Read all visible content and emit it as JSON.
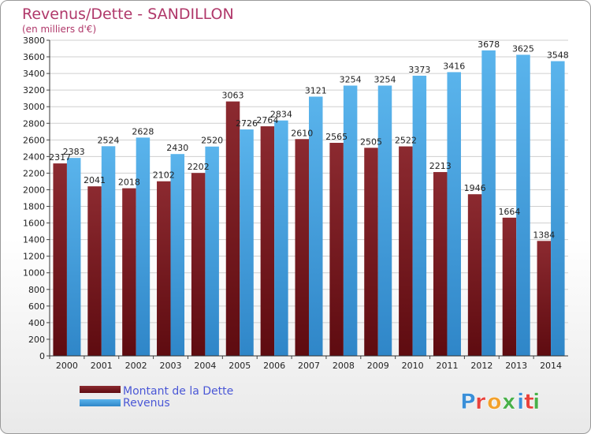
{
  "chart_data": {
    "type": "bar",
    "title": "Revenus/Dette - SANDILLON",
    "subtitle": "(en milliers d'€)",
    "categories": [
      "2000",
      "2001",
      "2002",
      "2003",
      "2004",
      "2005",
      "2006",
      "2007",
      "2008",
      "2009",
      "2010",
      "2011",
      "2012",
      "2013",
      "2014"
    ],
    "series": [
      {
        "name": "Montant de la Dette",
        "color": "#7a1d22",
        "values": [
          2317,
          2041,
          2018,
          2102,
          2202,
          3063,
          2764,
          2610,
          2565,
          2505,
          2522,
          2213,
          1946,
          1664,
          1384
        ]
      },
      {
        "name": "Revenus",
        "color": "#4aa8e6",
        "values": [
          2383,
          2524,
          2628,
          2430,
          2520,
          2726,
          2834,
          3121,
          3254,
          3254,
          3373,
          3416,
          3678,
          3625,
          3548
        ]
      }
    ],
    "data_labels": [
      [
        "2317",
        "2041",
        "2018",
        "2102",
        "2202",
        "3063",
        "2764",
        "2610",
        "2565",
        "2505",
        "2522",
        "2213",
        "1946",
        "1664",
        "1384"
      ],
      [
        "2383",
        "2524",
        "2628",
        "2430",
        "2520",
        "2726",
        "2834",
        "3121",
        "3254",
        "3254",
        "3373",
        "3416",
        "3678",
        "3625",
        "3548"
      ]
    ],
    "ylim": [
      0,
      3800
    ],
    "yticks": [
      0,
      200,
      400,
      600,
      800,
      1000,
      1200,
      1400,
      1600,
      1800,
      2000,
      2200,
      2400,
      2600,
      2800,
      3000,
      3200,
      3400,
      3600,
      3800
    ],
    "grid": true,
    "legend": "bottom-left"
  },
  "logo": {
    "text": "Proxiti",
    "letters": [
      "P",
      "r",
      "o",
      "x",
      "i",
      "t",
      "i"
    ]
  },
  "colors": {
    "debt_light": "#8c2a30",
    "debt_dark": "#5e0b10",
    "rev_light": "#5ab4ec",
    "rev_dark": "#2f86c8"
  }
}
